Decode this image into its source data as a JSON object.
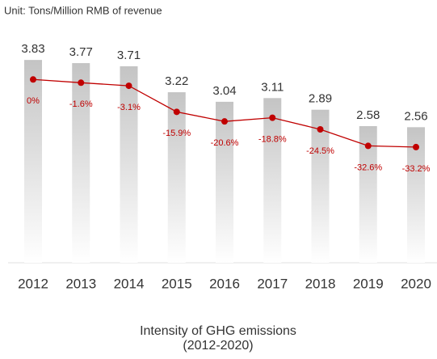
{
  "chart_data": {
    "type": "bar",
    "unit_label": "Unit: Tons/Million RMB of revenue",
    "title": "Intensity of GHG emissions",
    "subtitle": "(2012-2020)",
    "categories": [
      "2012",
      "2013",
      "2014",
      "2015",
      "2016",
      "2017",
      "2018",
      "2019",
      "2020"
    ],
    "series": [
      {
        "type": "bar",
        "color": "#c8c8c8",
        "values": [
          3.83,
          3.77,
          3.71,
          3.22,
          3.04,
          3.11,
          2.89,
          2.58,
          2.56
        ]
      },
      {
        "type": "line",
        "axis": "y2",
        "color": "#c00000",
        "values": [
          0,
          -1.6,
          -3.1,
          -15.9,
          -20.6,
          -18.8,
          -24.5,
          -32.6,
          -33.2
        ],
        "value_labels": [
          "0%",
          "-1.6%",
          "-3.1%",
          "-15.9%",
          "-20.6%",
          "-18.8%",
          "-24.5%",
          "-32.6%",
          "-33.2%"
        ]
      }
    ],
    "ylim": [
      0,
      4
    ],
    "y2lim": [
      -90,
      14
    ]
  }
}
